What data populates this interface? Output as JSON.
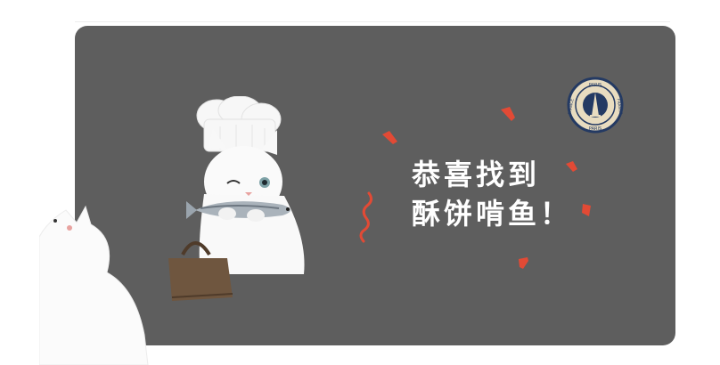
{
  "dialog": {
    "message_line1": "恭喜找到",
    "message_line2": "酥饼啃鱼！",
    "stamp_text_top": "PARIS",
    "stamp_text_left": "FRANCE",
    "stamp_text_right": "FRANCE",
    "stamp_text_bottom": "PARIS"
  },
  "colors": {
    "card_background": "#5e5e5e",
    "message_text": "#ffffff",
    "confetti": "#e24a35",
    "stamp_navy": "#243a63",
    "stamp_cream": "#e8dcc0",
    "handbag": "#6f563f"
  },
  "icons": [
    "chef-cat-illustration",
    "side-cat-illustration",
    "paris-stamp-icon",
    "confetti-icon",
    "fish-icon",
    "handbag-icon"
  ]
}
